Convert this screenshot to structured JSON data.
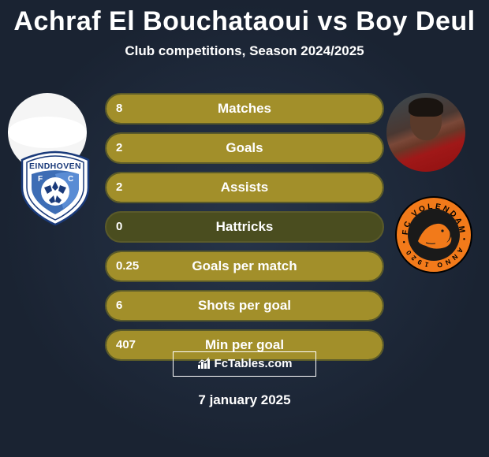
{
  "title": "Achraf El Bouchataoui vs Boy Deul",
  "subtitle": "Club competitions, Season 2024/2025",
  "date": "7 january 2025",
  "brand": "FcTables.com",
  "colors": {
    "bar_border": "#5a5a2a",
    "fill_olive": "#a28f2a"
  },
  "stats": [
    {
      "label": "Matches",
      "left_val": "8",
      "right_val": "",
      "left_pct": 100,
      "right_pct": 0
    },
    {
      "label": "Goals",
      "left_val": "2",
      "right_val": "",
      "left_pct": 100,
      "right_pct": 0
    },
    {
      "label": "Assists",
      "left_val": "2",
      "right_val": "",
      "left_pct": 100,
      "right_pct": 0
    },
    {
      "label": "Hattricks",
      "left_val": "0",
      "right_val": "",
      "left_pct": 0,
      "right_pct": 0
    },
    {
      "label": "Goals per match",
      "left_val": "0.25",
      "right_val": "",
      "left_pct": 100,
      "right_pct": 0
    },
    {
      "label": "Shots per goal",
      "left_val": "6",
      "right_val": "",
      "left_pct": 100,
      "right_pct": 0
    },
    {
      "label": "Min per goal",
      "left_val": "407",
      "right_val": "",
      "left_pct": 100,
      "right_pct": 0
    }
  ],
  "players": {
    "left_name": "Achraf El Bouchataoui",
    "right_name": "Boy Deul"
  },
  "clubs": {
    "left": "FC Eindhoven",
    "right": "FC Volendam"
  }
}
